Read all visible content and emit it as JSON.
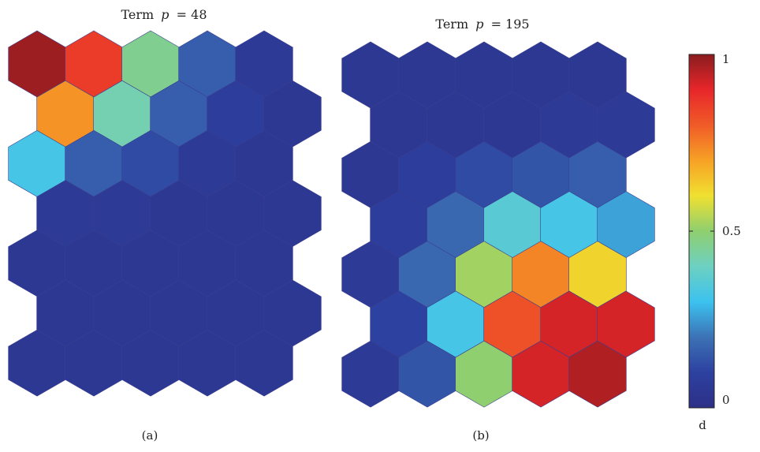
{
  "chart_data": [
    {
      "type": "heatmap",
      "layout": "hexagonal",
      "title_prefix": "Term",
      "title_var": "p",
      "title_eq": "= 48",
      "caption": "(a)",
      "rows": 7,
      "cols": 5,
      "values": [
        [
          0.98,
          0.86,
          0.46,
          0.16,
          0.06
        ],
        [
          0.72,
          0.42,
          0.16,
          0.08,
          0.05
        ],
        [
          0.32,
          0.16,
          0.12,
          0.06,
          0.05
        ],
        [
          0.06,
          0.06,
          0.05,
          0.05,
          0.05
        ],
        [
          0.05,
          0.05,
          0.05,
          0.05,
          0.05
        ],
        [
          0.05,
          0.05,
          0.05,
          0.05,
          0.05
        ],
        [
          0.05,
          0.05,
          0.05,
          0.05,
          0.05
        ]
      ]
    },
    {
      "type": "heatmap",
      "layout": "hexagonal",
      "title_prefix": "Term",
      "title_var": "p",
      "title_eq": "= 195",
      "caption": "(b)",
      "rows": 7,
      "cols": 5,
      "values": [
        [
          0.05,
          0.05,
          0.05,
          0.05,
          0.05
        ],
        [
          0.05,
          0.05,
          0.05,
          0.06,
          0.06
        ],
        [
          0.05,
          0.08,
          0.12,
          0.14,
          0.16
        ],
        [
          0.08,
          0.18,
          0.36,
          0.32,
          0.26
        ],
        [
          0.06,
          0.18,
          0.52,
          0.74,
          0.62
        ],
        [
          0.1,
          0.32,
          0.82,
          0.92,
          0.92
        ],
        [
          0.06,
          0.14,
          0.5,
          0.92,
          0.96
        ]
      ]
    }
  ],
  "colorbar": {
    "ticks": [
      "1",
      "0.5",
      "0"
    ],
    "label": "d",
    "range": [
      0,
      1
    ]
  },
  "colors": {
    "stops": [
      "#2d2f86",
      "#2d41a0",
      "#3c72b5",
      "#3cc2ef",
      "#6dd0c1",
      "#8fcf6f",
      "#f0e030",
      "#f7a125",
      "#f05b28",
      "#e8262a",
      "#8a1c1e"
    ]
  }
}
